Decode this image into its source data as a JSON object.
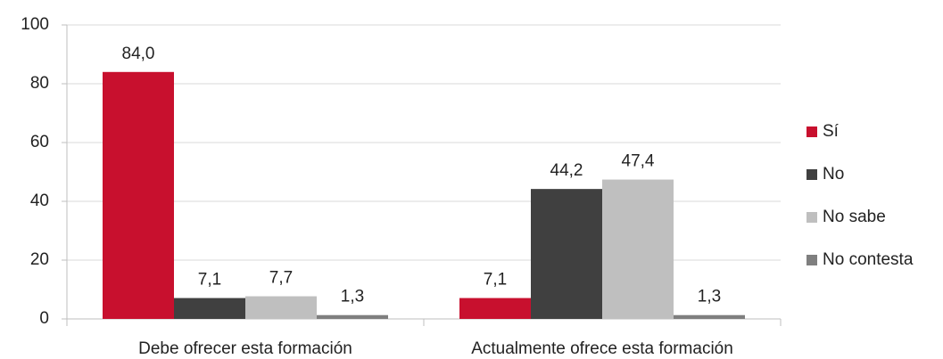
{
  "chart_data": {
    "type": "bar",
    "categories": [
      "Debe ofrecer esta formación",
      "Actualmente ofrece esta formación"
    ],
    "series": [
      {
        "name": "Sí",
        "color": "#c8102e",
        "values": [
          84.0,
          7.1
        ],
        "value_labels": [
          "84,0",
          "7,1"
        ]
      },
      {
        "name": "No",
        "color": "#404040",
        "values": [
          7.1,
          44.2
        ],
        "value_labels": [
          "7,1",
          "44,2"
        ]
      },
      {
        "name": "No sabe",
        "color": "#bfbfbf",
        "values": [
          7.7,
          47.4
        ],
        "value_labels": [
          "7,7",
          "47,4"
        ]
      },
      {
        "name": "No contesta",
        "color": "#7f7f7f",
        "values": [
          1.3,
          1.3
        ],
        "value_labels": [
          "1,3",
          "1,3"
        ]
      }
    ],
    "ylim": [
      0,
      100
    ],
    "yticks": [
      0,
      20,
      40,
      60,
      80,
      100
    ],
    "grid": true,
    "legend": "right"
  }
}
